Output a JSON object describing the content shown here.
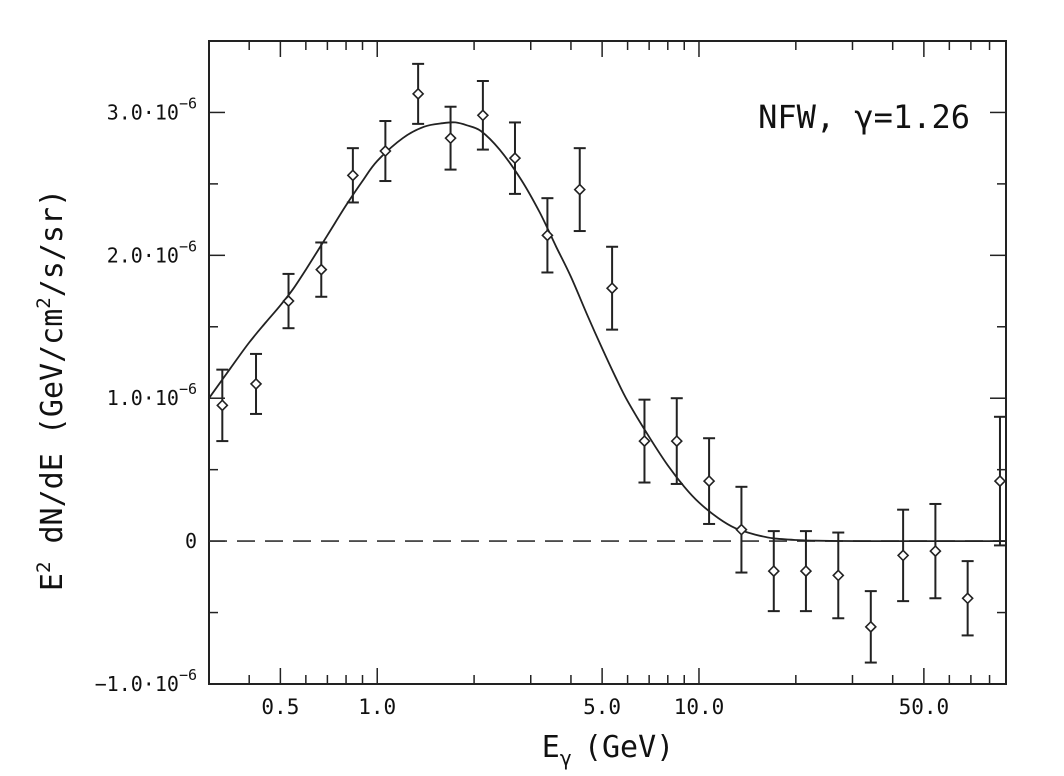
{
  "chart_data": {
    "type": "scatter",
    "annotation": "NFW, γ=1.26",
    "xlabel": {
      "main": "E",
      "sub": "γ",
      "unit": "(GeV)"
    },
    "ylabel": {
      "prefix": "E",
      "sup": "2",
      "main": " dN/dE (GeV/cm",
      "sup2": "2",
      "tail": "/s/sr)"
    },
    "x_scale": "log",
    "xlim": [
      0.3,
      90
    ],
    "ylim": [
      -1e-06,
      3.5e-06
    ],
    "x_ticks": [
      {
        "value": 0.5,
        "label": "0.5"
      },
      {
        "value": 1.0,
        "label": "1.0"
      },
      {
        "value": 5.0,
        "label": "5.0"
      },
      {
        "value": 10.0,
        "label": "10.0"
      },
      {
        "value": 50.0,
        "label": "50.0"
      }
    ],
    "y_ticks": [
      {
        "value": -1e-06,
        "label": "−1.0·10",
        "exp": "−6"
      },
      {
        "value": 0,
        "label": "0",
        "exp": ""
      },
      {
        "value": 1e-06,
        "label": "1.0·10",
        "exp": "−6"
      },
      {
        "value": 2e-06,
        "label": "2.0·10",
        "exp": "−6"
      },
      {
        "value": 3e-06,
        "label": "3.0·10",
        "exp": "−6"
      }
    ],
    "reference_line": {
      "y": 0,
      "style": "dashed"
    },
    "series": [
      {
        "kind": "points_with_errorbars",
        "x": [
          0.33,
          0.42,
          0.53,
          0.67,
          0.84,
          1.06,
          1.34,
          1.69,
          2.13,
          2.68,
          3.38,
          4.26,
          5.37,
          6.77,
          8.53,
          10.75,
          13.55,
          17.08,
          21.5,
          27.1,
          34.2,
          43.1,
          54.3,
          68.4,
          86.2
        ],
        "y": [
          9.5e-07,
          1.1e-06,
          1.68e-06,
          1.9e-06,
          2.56e-06,
          2.73e-06,
          3.13e-06,
          2.82e-06,
          2.98e-06,
          2.68e-06,
          2.14e-06,
          2.46e-06,
          1.77e-06,
          7e-07,
          7e-07,
          4.2e-07,
          8e-08,
          -2.1e-07,
          -2.1e-07,
          -2.4e-07,
          -6e-07,
          -1e-07,
          -7e-08,
          -4e-07,
          4.2e-07
        ],
        "err": [
          2.5e-07,
          2.1e-07,
          1.9e-07,
          1.9e-07,
          1.9e-07,
          2.1e-07,
          2.1e-07,
          2.2e-07,
          2.4e-07,
          2.5e-07,
          2.6e-07,
          2.9e-07,
          2.9e-07,
          2.9e-07,
          3e-07,
          3e-07,
          3e-07,
          2.8e-07,
          2.8e-07,
          3e-07,
          2.5e-07,
          3.2e-07,
          3.3e-07,
          2.6e-07,
          4.5e-07
        ]
      },
      {
        "kind": "curve",
        "x": [
          0.3,
          0.35,
          0.4,
          0.45,
          0.5,
          0.55,
          0.6,
          0.7,
          0.8,
          0.9,
          1.0,
          1.2,
          1.4,
          1.6,
          1.75,
          1.9,
          2.1,
          2.4,
          2.8,
          3.2,
          3.6,
          4.0,
          4.5,
          5.0,
          5.5,
          6.0,
          7.0,
          8.0,
          9.0,
          10.0,
          11.5,
          13.0,
          15.0,
          17.0,
          20.0,
          23.0,
          27.0,
          32.0,
          40.0,
          50.0,
          70.0,
          90.0
        ],
        "y": [
          1e-06,
          1.21e-06,
          1.39e-06,
          1.53e-06,
          1.65e-06,
          1.77e-06,
          1.9e-06,
          2.14e-06,
          2.35e-06,
          2.52e-06,
          2.66e-06,
          2.82e-06,
          2.9e-06,
          2.925e-06,
          2.93e-06,
          2.91e-06,
          2.87e-06,
          2.74e-06,
          2.53e-06,
          2.3e-06,
          2.06e-06,
          1.85e-06,
          1.58e-06,
          1.35e-06,
          1.15e-06,
          9.8e-07,
          7.3e-07,
          5.3e-07,
          3.8e-07,
          2.7e-07,
          1.6e-07,
          9e-08,
          4.5e-08,
          2e-08,
          8e-09,
          3e-09,
          1e-09,
          0.0,
          0.0,
          0.0,
          0.0,
          0.0
        ]
      }
    ]
  }
}
